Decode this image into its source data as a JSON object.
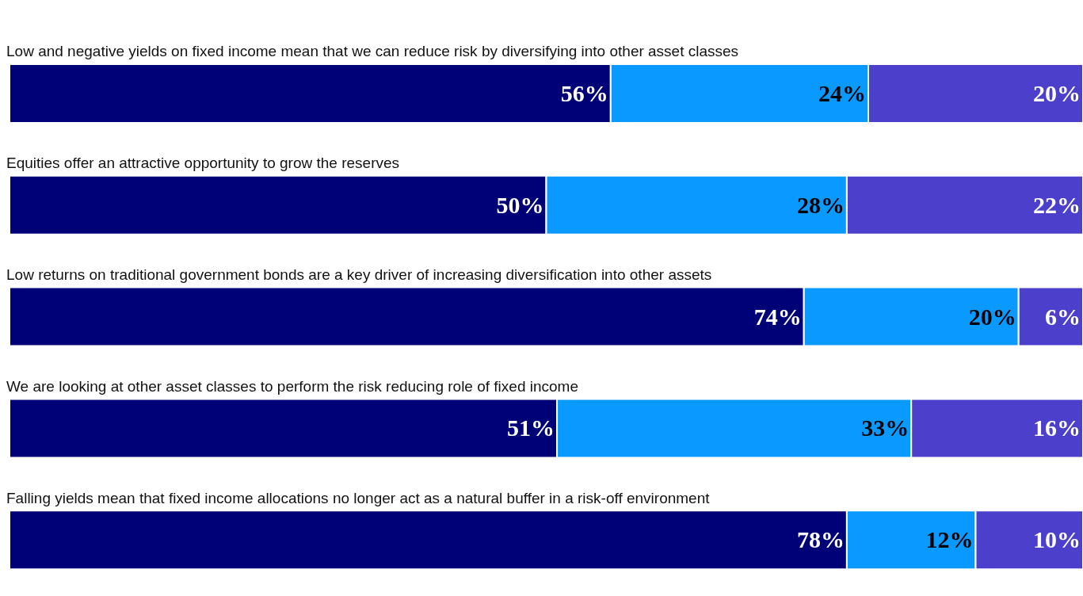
{
  "chart_data": {
    "type": "bar",
    "orientation": "horizontal",
    "stacked": true,
    "legend": false,
    "categories": [
      "Low and negative yields on fixed income mean that we can reduce risk by diversifying into other asset classes",
      "Equities offer an attractive opportunity to grow the reserves",
      "Low returns on traditional government bonds are a key driver of increasing diversification into other assets",
      "We are looking at other asset classes to perform the risk reducing role of fixed income",
      "Falling yields mean that fixed income allocations no longer act as a natural buffer in a risk-off environment"
    ],
    "series": [
      {
        "color": "#000077",
        "values": [
          56,
          50,
          74,
          51,
          78
        ],
        "value_labels": [
          "56%",
          "50%",
          "74%",
          "51%",
          "78%"
        ]
      },
      {
        "color": "#0a99ff",
        "values": [
          24,
          28,
          20,
          33,
          12
        ],
        "value_labels": [
          "24%",
          "28%",
          "20%",
          "33%",
          "12%"
        ]
      },
      {
        "color": "#4b3fcc",
        "values": [
          20,
          22,
          6,
          16,
          10
        ],
        "value_labels": [
          "20%",
          "22%",
          "6%",
          "16%",
          "10%"
        ]
      }
    ]
  }
}
